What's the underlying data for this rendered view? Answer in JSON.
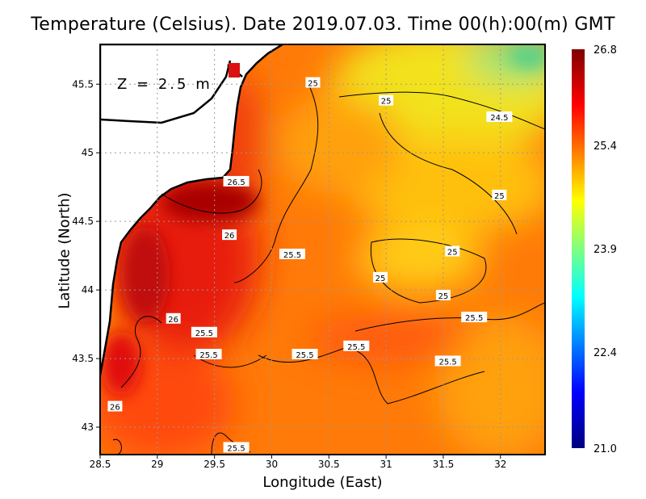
{
  "title": "Temperature (Celsius). Date 2019.07.03. Time 00(h):00(m) GMT",
  "depth_label": "Z = 2.5 m",
  "xlabel": "Longitude (East)",
  "ylabel": "Latitude (North)",
  "chart_data": {
    "type": "heatmap",
    "xlim": [
      28.5,
      32.39
    ],
    "ylim": [
      42.8,
      45.79
    ],
    "x_ticks": [
      "28.5",
      "29",
      "29.5",
      "30",
      "30.5",
      "31",
      "31.5",
      "32"
    ],
    "y_ticks": [
      "43",
      "43.5",
      "44",
      "44.5",
      "45",
      "45.5"
    ],
    "colorbar": {
      "min": 21.0,
      "max": 26.8,
      "ticks": [
        "26.8",
        "25.4",
        "23.9",
        "22.4",
        "21.0"
      ]
    },
    "contour_labels": [
      {
        "text": "25",
        "lon": 30.36,
        "lat": 45.51
      },
      {
        "text": "25",
        "lon": 31.0,
        "lat": 45.38
      },
      {
        "text": "24.5",
        "lon": 31.99,
        "lat": 45.26
      },
      {
        "text": "26.5",
        "lon": 29.69,
        "lat": 44.79
      },
      {
        "text": "25",
        "lon": 31.99,
        "lat": 44.69
      },
      {
        "text": "26",
        "lon": 29.63,
        "lat": 44.4
      },
      {
        "text": "25.5",
        "lon": 30.18,
        "lat": 44.26
      },
      {
        "text": "25",
        "lon": 31.58,
        "lat": 44.28
      },
      {
        "text": "25",
        "lon": 30.95,
        "lat": 44.09
      },
      {
        "text": "25",
        "lon": 31.5,
        "lat": 43.96
      },
      {
        "text": "25.5",
        "lon": 31.77,
        "lat": 43.8
      },
      {
        "text": "26",
        "lon": 29.14,
        "lat": 43.79
      },
      {
        "text": "25.5",
        "lon": 29.41,
        "lat": 43.69
      },
      {
        "text": "25.5",
        "lon": 30.74,
        "lat": 43.59
      },
      {
        "text": "25.5",
        "lon": 29.45,
        "lat": 43.53
      },
      {
        "text": "25.5",
        "lon": 30.29,
        "lat": 43.53
      },
      {
        "text": "25.5",
        "lon": 31.54,
        "lat": 43.48
      },
      {
        "text": "26",
        "lon": 28.63,
        "lat": 43.15
      },
      {
        "text": "25.5",
        "lon": 29.69,
        "lat": 42.85
      }
    ]
  }
}
